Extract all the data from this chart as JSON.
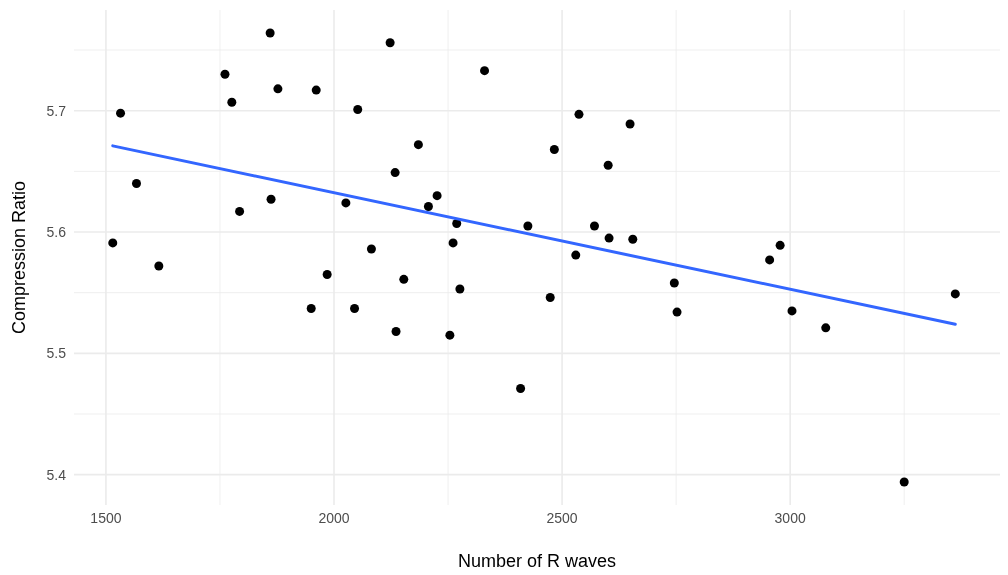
{
  "chart_data": {
    "type": "scatter",
    "xlabel": "Number of R waves",
    "ylabel": "Compression Ratio",
    "xlim": [
      1430,
      3460
    ],
    "ylim": [
      5.375,
      5.783
    ],
    "xticks": [
      1500,
      {
        "value": 1750,
        "label": null
      },
      2000,
      {
        "value": 2250,
        "label": null
      },
      2500,
      {
        "value": 2750,
        "label": null
      },
      3000,
      {
        "value": 3250,
        "label": null
      }
    ],
    "yticks": [
      5.4,
      {
        "value": 5.45,
        "label": null
      },
      5.5,
      {
        "value": 5.55,
        "label": null
      },
      5.6,
      {
        "value": 5.65,
        "label": null
      },
      5.7,
      {
        "value": 5.75,
        "label": null
      }
    ],
    "grid": true,
    "series": [
      {
        "marker": "circle",
        "color": "#000000",
        "x": [
          1515,
          1532,
          1567,
          1616,
          1761,
          1776,
          1793,
          1860,
          1862,
          1877,
          1950,
          1961,
          1985,
          2026,
          2045,
          2052,
          2082,
          2123,
          2134,
          2136,
          2153,
          2185,
          2207,
          2226,
          2254,
          2261,
          2269,
          2276,
          2330,
          2409,
          2425,
          2474,
          2483,
          2530,
          2537,
          2571,
          2601,
          2603,
          2649,
          2655,
          2746,
          2752,
          2955,
          2978,
          3004,
          3078,
          3250,
          3362
        ],
        "values": [
          5.591,
          5.698,
          5.64,
          5.572,
          5.73,
          5.707,
          5.617,
          5.764,
          5.627,
          5.718,
          5.537,
          5.717,
          5.565,
          5.624,
          5.537,
          5.701,
          5.586,
          5.756,
          5.649,
          5.518,
          5.561,
          5.672,
          5.621,
          5.63,
          5.515,
          5.591,
          5.607,
          5.553,
          5.733,
          5.471,
          5.605,
          5.546,
          5.668,
          5.581,
          5.697,
          5.605,
          5.655,
          5.595,
          5.689,
          5.594,
          5.558,
          5.534,
          5.577,
          5.589,
          5.535,
          5.521,
          5.394,
          5.549
        ]
      },
      {
        "type": "line",
        "color": "#3366ff",
        "x": [
          1515,
          3362
        ],
        "values": [
          5.671,
          5.524
        ]
      }
    ]
  }
}
